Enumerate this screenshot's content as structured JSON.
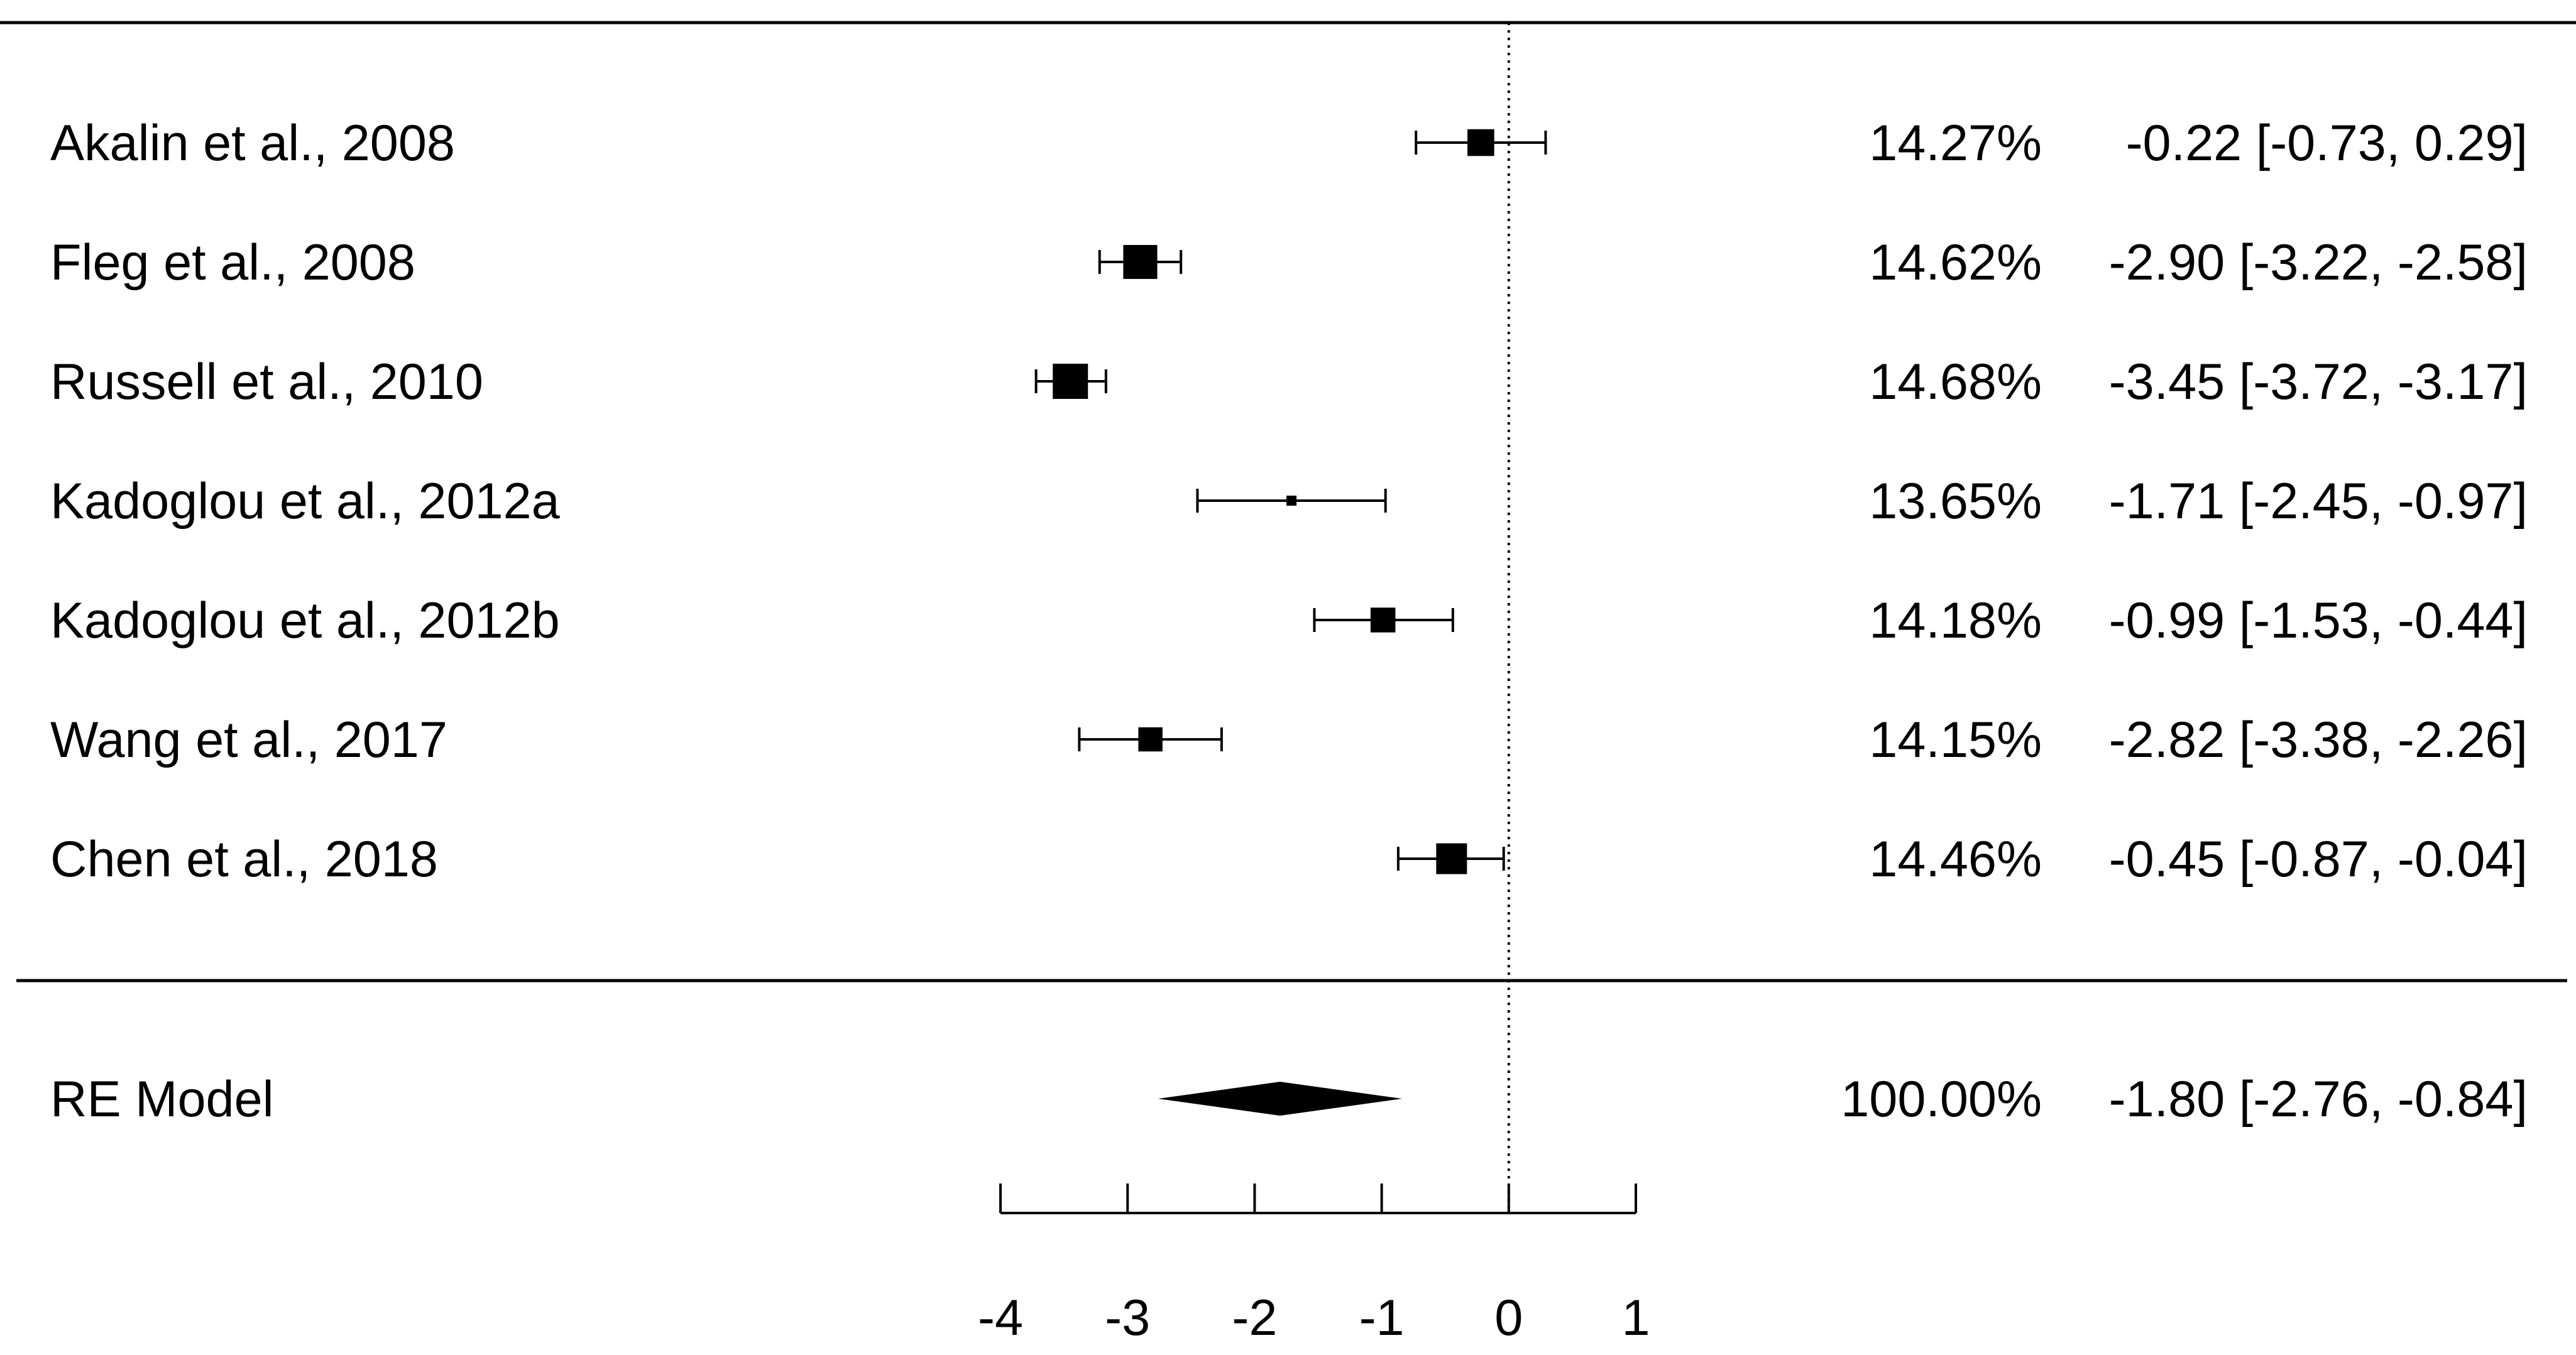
{
  "chart_data": {
    "type": "forest",
    "summary_label": "RE Model",
    "studies": [
      {
        "label": "Akalin et al., 2008",
        "estimate": -0.22,
        "ci_low": -0.73,
        "ci_high": 0.29,
        "weight": 14.27,
        "weight_text": "14.27%",
        "ci_text": "-0.22 [-0.73,  0.29]"
      },
      {
        "label": "Fleg et al., 2008",
        "estimate": -2.9,
        "ci_low": -3.22,
        "ci_high": -2.58,
        "weight": 14.62,
        "weight_text": "14.62%",
        "ci_text": "-2.90 [-3.22, -2.58]"
      },
      {
        "label": "Russell et al., 2010",
        "estimate": -3.45,
        "ci_low": -3.72,
        "ci_high": -3.17,
        "weight": 14.68,
        "weight_text": "14.68%",
        "ci_text": "-3.45 [-3.72, -3.17]"
      },
      {
        "label": "Kadoglou et al., 2012a",
        "estimate": -1.71,
        "ci_low": -2.45,
        "ci_high": -0.97,
        "weight": 13.65,
        "weight_text": "13.65%",
        "ci_text": "-1.71 [-2.45, -0.97]"
      },
      {
        "label": "Kadoglou et al., 2012b",
        "estimate": -0.99,
        "ci_low": -1.53,
        "ci_high": -0.44,
        "weight": 14.18,
        "weight_text": "14.18%",
        "ci_text": "-0.99 [-1.53, -0.44]"
      },
      {
        "label": "Wang et al., 2017",
        "estimate": -2.82,
        "ci_low": -3.38,
        "ci_high": -2.26,
        "weight": 14.15,
        "weight_text": "14.15%",
        "ci_text": "-2.82 [-3.38, -2.26]"
      },
      {
        "label": "Chen et al., 2018",
        "estimate": -0.45,
        "ci_low": -0.87,
        "ci_high": -0.04,
        "weight": 14.46,
        "weight_text": "14.46%",
        "ci_text": "-0.45 [-0.87, -0.04]"
      }
    ],
    "summary": {
      "estimate": -1.8,
      "ci_low": -2.76,
      "ci_high": -0.84,
      "weight_text": "100.00%",
      "ci_text": "-1.80 [-2.76, -0.84]"
    },
    "xlim": [
      -4,
      1
    ],
    "xticks": [
      -4,
      -3,
      -2,
      -1,
      0,
      1
    ],
    "reference_line": 0,
    "xlabel": "",
    "grid": false,
    "colors": {
      "ink": "#000000",
      "background": "#ffffff"
    }
  }
}
